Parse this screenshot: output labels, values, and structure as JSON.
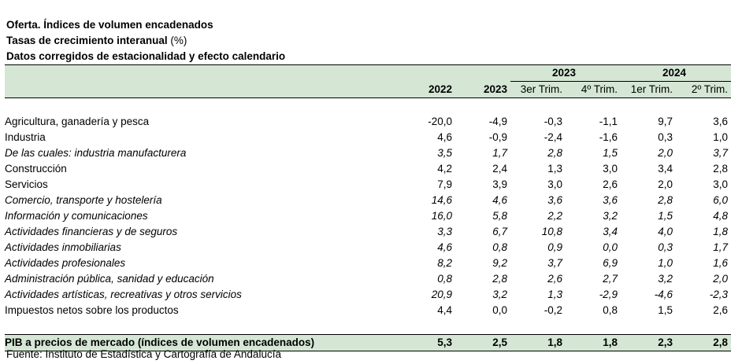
{
  "titles": {
    "line1": "Oferta. Índices de volumen encadenados",
    "line2": "Tasas de crecimiento interanual",
    "line2_unit": "(%)",
    "line3": "Datos corregidos de estacionalidad y efecto calendario"
  },
  "header": {
    "year_2023": "2023",
    "year_2024": "2024",
    "columns": [
      "2022",
      "2023",
      "3er Trim.",
      "4º Trim.",
      "1er Trim.",
      "2º Trim."
    ]
  },
  "rows": [
    {
      "label": "Agricultura, ganadería y pesca",
      "values": [
        "-20,0",
        "-4,9",
        "-0,3",
        "-1,1",
        "9,7",
        "3,6"
      ]
    },
    {
      "label": "Industria",
      "values": [
        "4,6",
        "-0,9",
        "-2,4",
        "-1,6",
        "0,3",
        "1,0"
      ]
    },
    {
      "label": "De las cuales: industria manufacturera",
      "values": [
        "3,5",
        "1,7",
        "2,8",
        "1,5",
        "2,0",
        "3,7"
      ]
    },
    {
      "label": "Construcción",
      "values": [
        "4,2",
        "2,4",
        "1,3",
        "3,0",
        "3,4",
        "2,8"
      ]
    },
    {
      "label": "Servicios",
      "values": [
        "7,9",
        "3,9",
        "3,0",
        "2,6",
        "2,0",
        "3,0"
      ]
    },
    {
      "label": "Comercio, transporte y hostelería",
      "values": [
        "14,6",
        "4,6",
        "3,6",
        "3,6",
        "2,8",
        "6,0"
      ]
    },
    {
      "label": "Información y comunicaciones",
      "values": [
        "16,0",
        "5,8",
        "2,2",
        "3,2",
        "1,5",
        "4,8"
      ]
    },
    {
      "label": "Actividades financieras y de seguros",
      "values": [
        "3,3",
        "6,7",
        "10,8",
        "3,4",
        "4,0",
        "1,8"
      ]
    },
    {
      "label": "Actividades inmobiliarias",
      "values": [
        "4,6",
        "0,8",
        "0,9",
        "0,0",
        "0,3",
        "1,7"
      ]
    },
    {
      "label": "Actividades profesionales",
      "values": [
        "8,2",
        "9,2",
        "3,7",
        "6,9",
        "1,0",
        "1,6"
      ]
    },
    {
      "label": "Administración pública, sanidad y educación",
      "values": [
        "0,8",
        "2,8",
        "2,6",
        "2,7",
        "3,2",
        "2,0"
      ]
    },
    {
      "label": "Actividades artísticas, recreativas y otros servicios",
      "values": [
        "20,9",
        "3,2",
        "1,3",
        "-2,9",
        "-4,6",
        "-2,3"
      ]
    },
    {
      "label": "Impuestos netos sobre los productos",
      "values": [
        "4,4",
        "0,0",
        "-0,2",
        "0,8",
        "1,5",
        "2,6"
      ]
    }
  ],
  "pib": {
    "label": "PIB a precios de mercado (índices de volumen encadenados)",
    "values": [
      "5,3",
      "2,5",
      "1,8",
      "1,8",
      "2,3",
      "2,8"
    ]
  },
  "source": "Fuente: Instituto de Estadística y Cartografía de Andalucía"
}
